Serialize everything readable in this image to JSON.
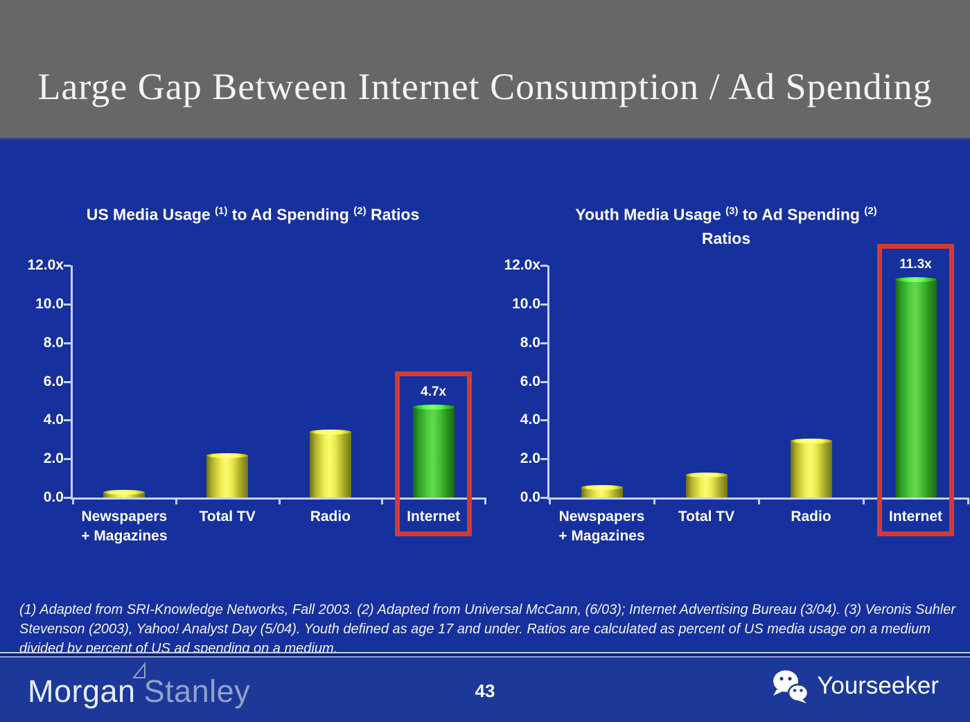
{
  "header": {
    "title": "Large Gap Between Internet Consumption / Ad Spending"
  },
  "chart_data": [
    {
      "type": "bar",
      "title": "US Media Usage (1) to Ad Spending (2) Ratios",
      "title_segments": [
        {
          "text": "US Media Usage "
        },
        {
          "sup": "(1)"
        },
        {
          "text": " to Ad Spending "
        },
        {
          "sup": "(2)"
        },
        {
          "text": " Ratios"
        }
      ],
      "categories": [
        "Newspapers + Magazines",
        "Total TV",
        "Radio",
        "Internet"
      ],
      "category_lines": [
        [
          "Newspapers",
          "+ Magazines"
        ],
        [
          "Total TV"
        ],
        [
          "Radio"
        ],
        [
          "Internet"
        ]
      ],
      "values": [
        0.3,
        2.2,
        3.4,
        4.7
      ],
      "bar_colors": [
        "yellow",
        "yellow",
        "yellow",
        "green"
      ],
      "value_labels": [
        null,
        null,
        null,
        "4.7x"
      ],
      "highlight_index": 3,
      "y_ticks": [
        "12.0x",
        "10.0",
        "8.0",
        "6.0",
        "4.0",
        "2.0",
        "0.0"
      ],
      "ylim": [
        0,
        12
      ],
      "grid": false,
      "legend": null
    },
    {
      "type": "bar",
      "title": "Youth Media Usage (3) to Ad Spending (2) Ratios",
      "title_segments": [
        {
          "text": "Youth Media Usage "
        },
        {
          "sup": "(3)"
        },
        {
          "text": " to Ad Spending "
        },
        {
          "sup": "(2)"
        },
        {
          "br": true
        },
        {
          "text": "Ratios"
        }
      ],
      "categories": [
        "Newspapers + Magazines",
        "Total TV",
        "Radio",
        "Internet"
      ],
      "category_lines": [
        [
          "Newspapers",
          "+ Magazines"
        ],
        [
          "Total TV"
        ],
        [
          "Radio"
        ],
        [
          "Internet"
        ]
      ],
      "values": [
        0.55,
        1.2,
        2.95,
        11.3
      ],
      "bar_colors": [
        "yellow",
        "yellow",
        "yellow",
        "green"
      ],
      "value_labels": [
        null,
        null,
        null,
        "11.3x"
      ],
      "highlight_index": 3,
      "y_ticks": [
        "12.0x",
        "10.0",
        "8.0",
        "6.0",
        "4.0",
        "2.0",
        "0.0"
      ],
      "ylim": [
        0,
        12
      ],
      "grid": false,
      "legend": null
    }
  ],
  "footnote": "(1) Adapted from SRI-Knowledge Networks, Fall 2003.  (2) Adapted from Universal McCann, (6/03); Internet Advertising Bureau (3/04). (3) Veronis Suhler Stevenson (2003), Yahoo! Analyst Day (5/04).  Youth defined as age 17 and under.  Ratios are calculated as percent of US media usage on a medium divided by percent of US ad spending on a medium.",
  "footer": {
    "brand_morgan": "Morgan",
    "brand_stanley": "Stanley",
    "page_number": "43",
    "watermark": "Yourseeker"
  },
  "colors": {
    "header_gray": "#676767",
    "body_blue": "#16309d",
    "footer_blue": "#1c3899",
    "axis": "#c9d1f4",
    "bar_yellow_center": "#fbfb6e",
    "bar_yellow_edge": "#74741a",
    "bar_green_center": "#63da4e",
    "bar_green_edge": "#176412",
    "highlight_red": "#d23b35"
  }
}
